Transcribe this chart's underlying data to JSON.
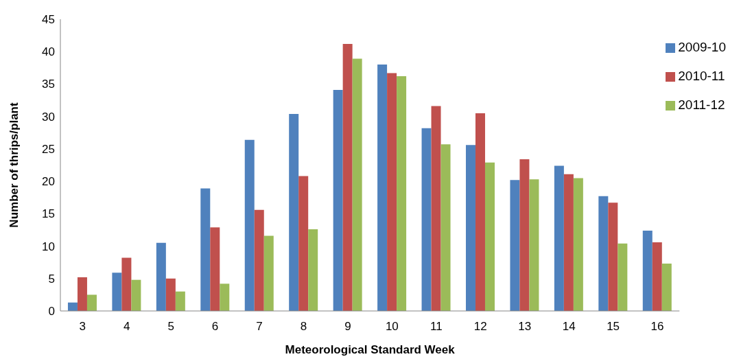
{
  "chart_data": {
    "type": "bar",
    "xlabel": "Meteorological Standard Week",
    "ylabel": "Number of thrips/plant",
    "categories": [
      "3",
      "4",
      "5",
      "6",
      "7",
      "8",
      "9",
      "10",
      "11",
      "12",
      "13",
      "14",
      "15",
      "16"
    ],
    "series": [
      {
        "name": "2009-10",
        "color": "#4f81bd",
        "values": [
          1.3,
          5.9,
          10.5,
          18.9,
          26.4,
          30.4,
          34.1,
          38.0,
          28.2,
          25.6,
          20.2,
          22.4,
          17.7,
          12.4
        ]
      },
      {
        "name": "2010-11",
        "color": "#c0504d",
        "values": [
          5.2,
          8.2,
          5.0,
          12.9,
          15.6,
          20.8,
          41.2,
          36.7,
          31.6,
          30.5,
          23.4,
          21.1,
          16.7,
          10.6
        ]
      },
      {
        "name": "2011-12",
        "color": "#9bbb59",
        "values": [
          2.5,
          4.8,
          3.0,
          4.2,
          11.6,
          12.6,
          38.9,
          36.2,
          25.7,
          22.9,
          20.3,
          20.5,
          10.4,
          7.3
        ]
      }
    ],
    "ylim": [
      0,
      45
    ],
    "yticks": [
      0,
      5,
      10,
      15,
      20,
      25,
      30,
      35,
      40,
      45
    ],
    "grid": false,
    "legend": "top right"
  }
}
